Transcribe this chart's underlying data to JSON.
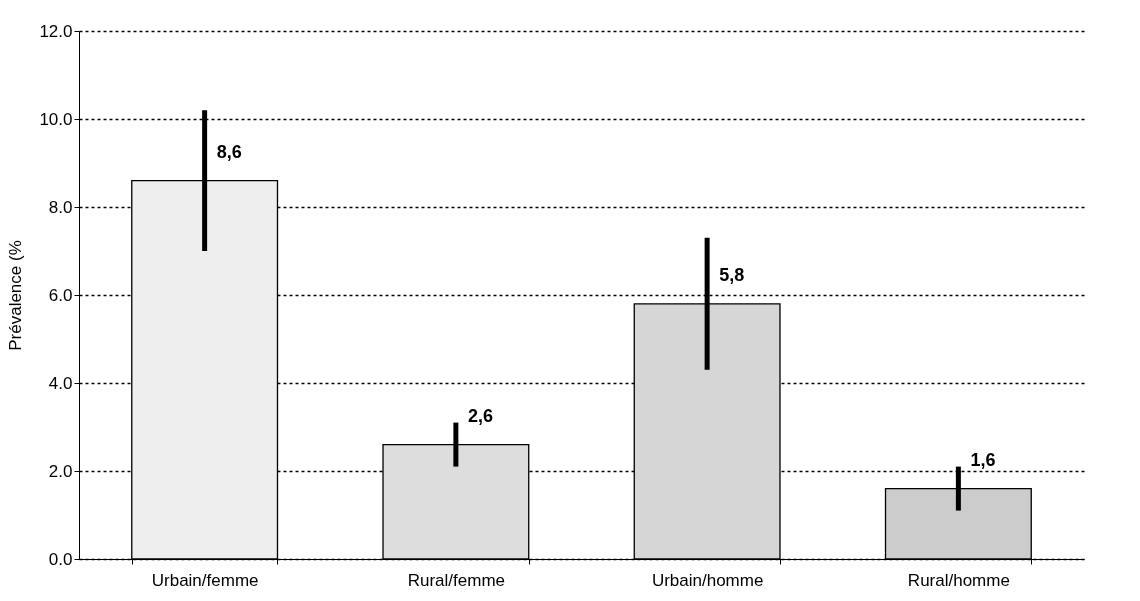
{
  "chart_data": {
    "type": "bar",
    "ylabel": "Prévalence (%",
    "categories": [
      "Urbain/femme",
      "Rural/femme",
      "Urbain/homme",
      "Rural/homme"
    ],
    "values": [
      8.6,
      2.6,
      5.8,
      1.6
    ],
    "colors": [
      "#eeeeee",
      "#dddddd",
      "#d6d6d6",
      "#cccccc"
    ],
    "errors": [
      [
        7.0,
        10.2
      ],
      [
        2.1,
        3.1
      ],
      [
        4.3,
        7.3
      ],
      [
        1.1,
        2.1
      ]
    ],
    "value_labels": [
      "8,6",
      "2,6",
      "5,8",
      "1,6"
    ],
    "ylim": [
      0,
      12
    ],
    "yticks": [
      {
        "value": 0,
        "label": "0.0"
      },
      {
        "value": 2,
        "label": "2.0"
      },
      {
        "value": 4,
        "label": "4.0"
      },
      {
        "value": 6,
        "label": "6.0"
      },
      {
        "value": 8,
        "label": "8.0"
      },
      {
        "value": 10,
        "label": "10.0"
      },
      {
        "value": 12,
        "label": "12.0"
      }
    ],
    "grid": "y",
    "line_style": "dotted"
  }
}
